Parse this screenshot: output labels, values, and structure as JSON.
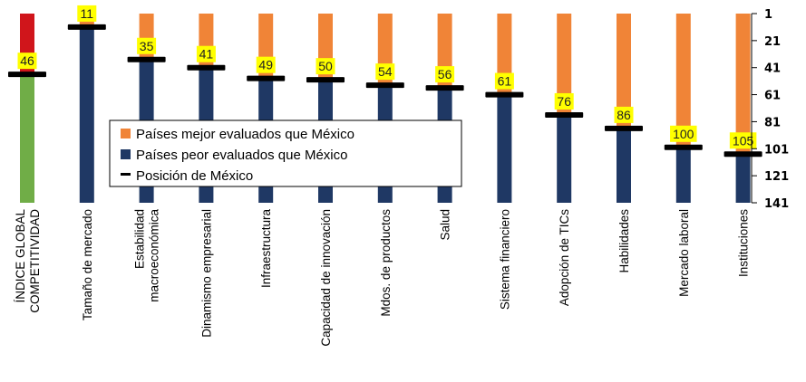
{
  "chart_data": {
    "type": "bar",
    "title": "",
    "xlabel": "",
    "ylabel": "",
    "ylim": [
      1,
      141
    ],
    "y_axis_inverted": true,
    "y_axis_position": "right",
    "y_ticks": [
      "1",
      "21",
      "41",
      "61",
      "81",
      "101",
      "121",
      "141"
    ],
    "categories": [
      [
        "ÍNDICE GLOBAL",
        "COMPETITIVIDAD"
      ],
      [
        "Tamaño de mercado"
      ],
      [
        "Estabilidad",
        "macroeconómica"
      ],
      [
        "Dinamismo empresarial"
      ],
      [
        "Infraestructura"
      ],
      [
        "Capacidad de innovación"
      ],
      [
        "Mdos. de productos"
      ],
      [
        "Salud"
      ],
      [
        "Sistema financiero"
      ],
      [
        "Adopción de TICs"
      ],
      [
        "Habilidades"
      ],
      [
        "Mercado laboral"
      ],
      [
        "Instituciones"
      ]
    ],
    "values": [
      46,
      11,
      35,
      41,
      49,
      50,
      54,
      56,
      61,
      76,
      86,
      100,
      105
    ],
    "series": [
      {
        "name": "Países mejor evaluados que México",
        "color": "#f08437"
      },
      {
        "name": "Países peor evaluados que México",
        "color": "#1f3864"
      },
      {
        "name": "Posición de México",
        "color": "#000000"
      }
    ],
    "highlight_bar": {
      "index": 0,
      "top_color": "#d0151b",
      "bottom_color": "#70ad47"
    },
    "legend_placement": "center-left",
    "grid": false
  }
}
